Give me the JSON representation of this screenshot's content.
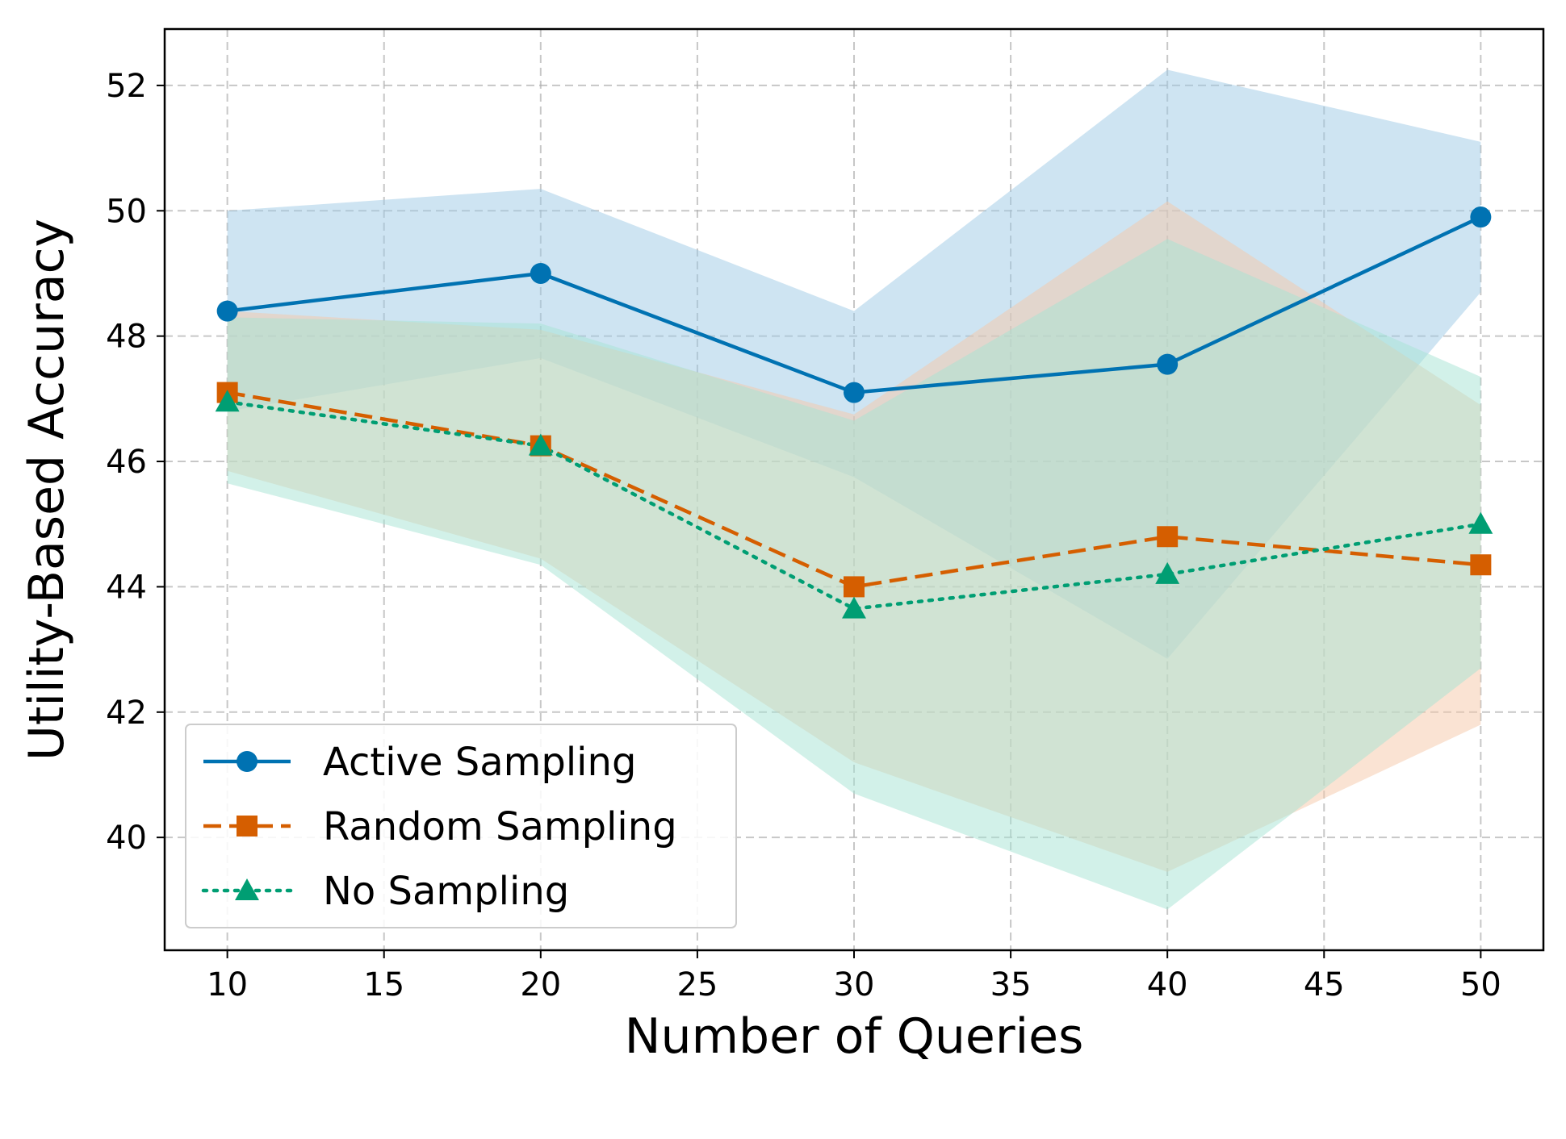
{
  "chart_data": {
    "type": "line",
    "title": "",
    "xlabel": "Number of Queries",
    "ylabel": "Utility-Based Accuracy",
    "x": [
      10,
      20,
      30,
      40,
      50
    ],
    "xlim": [
      8,
      52
    ],
    "ylim": [
      38.2,
      52.9
    ],
    "xticks": [
      10,
      15,
      20,
      25,
      30,
      35,
      40,
      45,
      50
    ],
    "yticks": [
      40,
      42,
      44,
      46,
      48,
      50,
      52
    ],
    "grid": true,
    "legend_position": "lower-left",
    "series": [
      {
        "name": "Active Sampling",
        "values": [
          48.4,
          49.0,
          47.1,
          47.55,
          49.9
        ],
        "band_upper": [
          50.0,
          50.35,
          48.4,
          52.25,
          51.1
        ],
        "band_lower": [
          46.8,
          47.65,
          45.75,
          42.85,
          48.7
        ],
        "color": "#0072B2",
        "band_color": "#9ECAE6",
        "marker": "circle",
        "line_style": "solid"
      },
      {
        "name": "Random Sampling",
        "values": [
          47.1,
          46.25,
          44.0,
          44.8,
          44.35
        ],
        "band_upper": [
          48.4,
          48.1,
          46.75,
          50.15,
          46.9
        ],
        "band_lower": [
          45.85,
          44.45,
          41.2,
          39.45,
          41.8
        ],
        "color": "#D55E00",
        "band_color": "#F5C7A8",
        "marker": "square",
        "line_style": "dashed"
      },
      {
        "name": "No Sampling",
        "values": [
          46.95,
          46.25,
          43.65,
          44.2,
          45.0
        ],
        "band_upper": [
          48.3,
          48.2,
          46.65,
          49.55,
          47.35
        ],
        "band_lower": [
          45.65,
          44.35,
          40.7,
          38.85,
          42.7
        ],
        "color": "#009E73",
        "band_color": "#A6E3D3",
        "marker": "triangle",
        "line_style": "dotted"
      }
    ]
  }
}
